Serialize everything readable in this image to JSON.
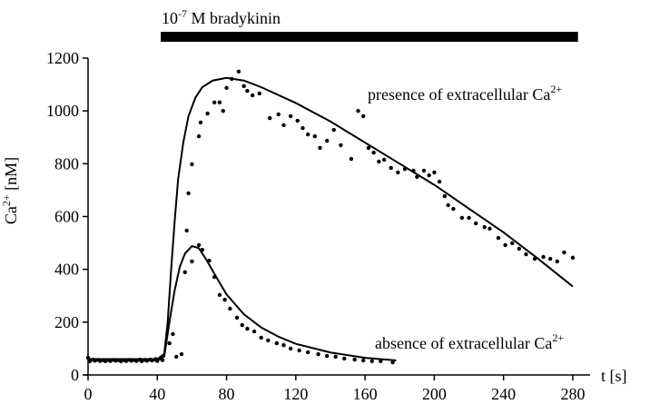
{
  "chart_data": {
    "type": "scatter",
    "stimulus": {
      "text": "10",
      "sup": "-7",
      "rest": " M bradykinin",
      "x": [
        42,
        283
      ]
    },
    "ylabel": {
      "text": "Ca",
      "sup": "2+",
      "rest": " [nM]"
    },
    "xlabel": "t [s]",
    "annotations": [
      {
        "text": "presence of extracellular Ca",
        "sup": "2+"
      },
      {
        "text": "absence of extracellular Ca",
        "sup": "2+"
      }
    ],
    "xlim": [
      0,
      290
    ],
    "ylim": [
      0,
      1200
    ],
    "xticks": [
      0,
      40,
      80,
      120,
      160,
      200,
      240,
      280
    ],
    "yticks": [
      0,
      200,
      400,
      600,
      800,
      1000,
      1200
    ],
    "series": [
      {
        "type": "scatter",
        "color": "#000",
        "x": [
          0,
          3,
          6,
          9,
          12,
          15,
          18,
          21,
          24,
          27,
          30,
          33,
          36,
          39,
          42,
          56,
          57,
          58,
          60,
          64,
          65,
          69,
          73,
          76,
          78,
          80,
          83,
          87,
          90,
          92,
          95,
          99,
          105,
          110,
          113,
          117,
          121,
          124,
          127,
          131,
          134,
          138,
          142,
          146,
          152,
          156,
          159,
          162,
          165,
          168,
          171,
          175,
          179,
          183,
          188,
          190,
          194,
          197,
          200,
          203,
          206,
          208,
          211,
          216,
          220,
          224,
          229,
          232,
          237,
          241,
          245,
          249,
          253,
          258,
          263,
          267,
          271,
          275,
          280
        ],
        "values": [
          65,
          58,
          57,
          56,
          56,
          57,
          55,
          56,
          57,
          56,
          58,
          57,
          58,
          60,
          62,
          389,
          547,
          688,
          798,
          904,
          956,
          990,
          1032,
          1032,
          1000,
          1087,
          1121,
          1149,
          1094,
          1076,
          1059,
          1066,
          973,
          987,
          946,
          980,
          963,
          935,
          911,
          904,
          860,
          887,
          928,
          870,
          818,
          1000,
          980,
          860,
          842,
          808,
          815,
          784,
          767,
          780,
          774,
          750,
          774,
          756,
          767,
          732,
          677,
          643,
          629,
          595,
          595,
          574,
          560,
          554,
          519,
          492,
          499,
          478,
          457,
          440,
          447,
          440,
          430,
          464,
          444
        ]
      },
      {
        "type": "scatter",
        "color": "#000",
        "x": [
          1,
          4,
          7,
          10,
          13,
          16,
          19,
          22,
          25,
          28,
          31,
          34,
          37,
          40,
          43,
          47,
          49,
          51,
          54,
          60,
          64,
          66,
          70,
          73,
          76,
          79,
          82,
          86,
          89,
          92,
          96,
          100,
          104,
          109,
          113,
          117,
          122,
          127,
          133,
          138,
          143,
          148,
          154,
          159,
          164,
          169,
          176
        ],
        "values": [
          52,
          54,
          53,
          52,
          53,
          54,
          52,
          53,
          54,
          53,
          52,
          54,
          55,
          53,
          56,
          120,
          155,
          69,
          79,
          430,
          492,
          474,
          433,
          371,
          303,
          285,
          251,
          217,
          189,
          175,
          165,
          141,
          131,
          120,
          113,
          100,
          93,
          86,
          79,
          72,
          69,
          62,
          58,
          55,
          52,
          52,
          48
        ]
      },
      {
        "type": "line",
        "color": "#000",
        "x": [
          0,
          20,
          40,
          44,
          46,
          48,
          50,
          52,
          55,
          58,
          62,
          66,
          72,
          80,
          90,
          100,
          120,
          140,
          160,
          180,
          200,
          220,
          240,
          260,
          280
        ],
        "values": [
          60,
          60,
          60,
          80,
          200,
          400,
          580,
          740,
          880,
          980,
          1050,
          1090,
          1115,
          1125,
          1115,
          1090,
          1030,
          960,
          880,
          800,
          720,
          630,
          540,
          440,
          335
        ]
      },
      {
        "type": "line",
        "color": "#000",
        "x": [
          0,
          40,
          44,
          47,
          50,
          53,
          56,
          60,
          64,
          68,
          75,
          80,
          90,
          100,
          110,
          120,
          140,
          160,
          178
        ],
        "values": [
          55,
          55,
          70,
          200,
          320,
          410,
          460,
          488,
          480,
          440,
          360,
          305,
          230,
          180,
          145,
          118,
          85,
          65,
          55
        ]
      }
    ]
  }
}
